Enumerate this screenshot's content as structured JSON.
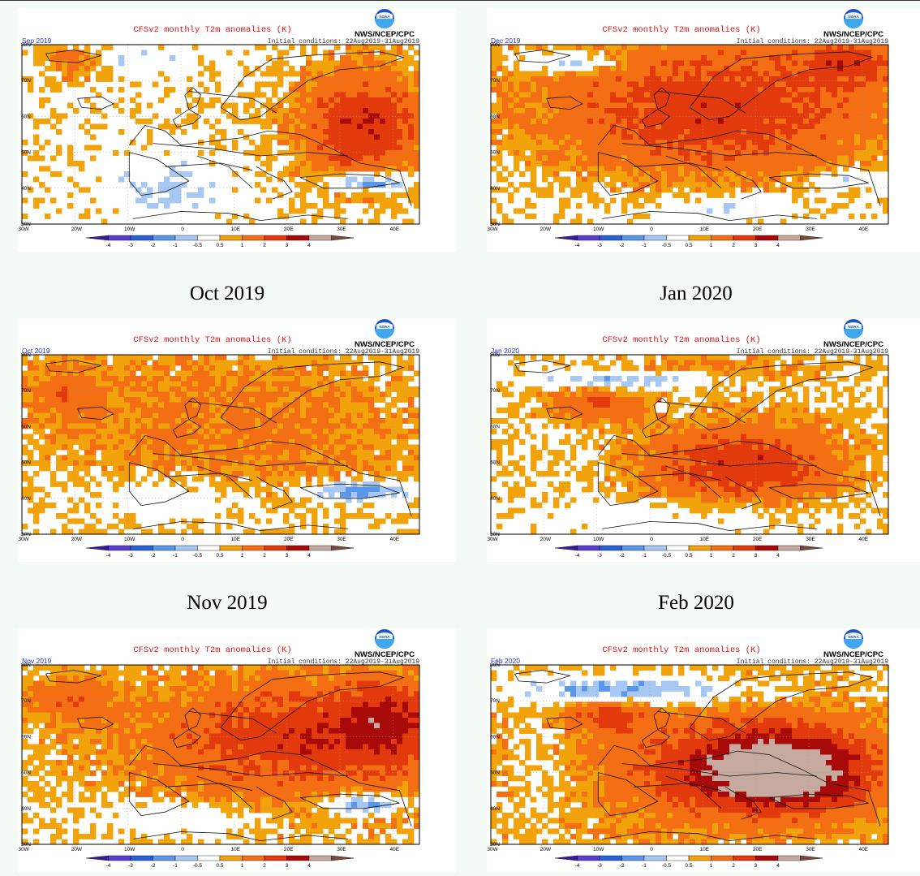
{
  "headers": [
    {
      "label": "Oct 2019"
    },
    {
      "label": "Jan 2020"
    },
    {
      "label": "Nov 2019"
    },
    {
      "label": "Feb 2020"
    }
  ],
  "common": {
    "title": "CFSv2 monthly T2m anomalies (K)",
    "agency": "NWS/NCEP/CPC",
    "logo_text": "NOAA",
    "init": "Initial conditions: 22Aug2019-31Aug2019",
    "lat_labels": [
      "80N",
      "70N",
      "60N",
      "50N",
      "40N",
      "30N"
    ],
    "lon_labels": [
      "30W",
      "20W",
      "10W",
      "0",
      "10E",
      "20E",
      "30E",
      "40E"
    ],
    "colorbar_labels": [
      "-4",
      "-3",
      "-2",
      "-1",
      "-0.5",
      "0.5",
      "1",
      "2",
      "3",
      "4"
    ],
    "colors": [
      "#3a1a9a",
      "#5a3fcf",
      "#2a62d6",
      "#5a96ea",
      "#a8c8f4",
      "#ffffff",
      "#f2a20a",
      "#f46e14",
      "#e23a0c",
      "#a80a0a",
      "#c6aaa0",
      "#7a4a3a"
    ],
    "anomaly_bins": [
      -4,
      -3,
      -2,
      -1,
      -0.5,
      0.5,
      1,
      2,
      3,
      4
    ]
  },
  "panels": [
    {
      "month_label": "Sep 2019"
    },
    {
      "month_label": "Dec 2019"
    },
    {
      "month_label": "Oct 2019"
    },
    {
      "month_label": "Jan 2020"
    },
    {
      "month_label": "Nov 2019"
    },
    {
      "month_label": "Feb 2020"
    }
  ]
}
